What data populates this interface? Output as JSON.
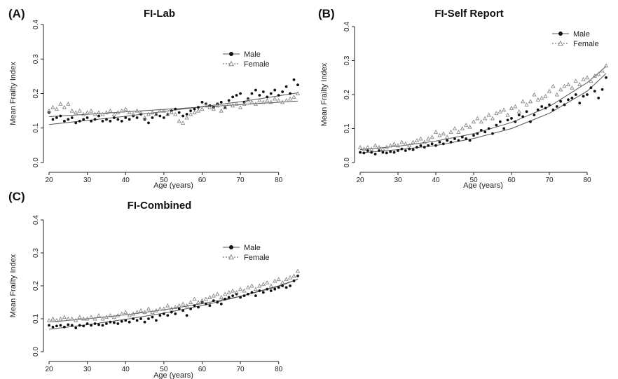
{
  "chart_data": [
    {
      "panel": "(A)",
      "type": "scatter",
      "title": "FI-Lab",
      "xlabel": "Age (years)",
      "ylabel": "Mean Frailty Index",
      "xlim": [
        20,
        85
      ],
      "ylim": [
        0,
        0.4
      ],
      "xticks": [
        "20",
        "30",
        "40",
        "50",
        "60",
        "70",
        "80"
      ],
      "yticks": [
        "0.0",
        "0.1",
        "0.2",
        "0.3",
        "0.4"
      ],
      "legend_position": "top-right",
      "series": [
        {
          "name": "Male",
          "marker": "filled-circle",
          "color": "#111111",
          "x": [
            20,
            21,
            22,
            23,
            24,
            25,
            26,
            27,
            28,
            29,
            30,
            31,
            32,
            33,
            34,
            35,
            36,
            37,
            38,
            39,
            40,
            41,
            42,
            43,
            44,
            45,
            46,
            47,
            48,
            49,
            50,
            51,
            52,
            53,
            54,
            55,
            56,
            57,
            58,
            59,
            60,
            61,
            62,
            63,
            64,
            65,
            66,
            67,
            68,
            69,
            70,
            71,
            72,
            73,
            74,
            75,
            76,
            77,
            78,
            79,
            80,
            81,
            82,
            83,
            84,
            85
          ],
          "y": [
            0.145,
            0.125,
            0.13,
            0.135,
            0.12,
            0.125,
            0.13,
            0.115,
            0.12,
            0.125,
            0.13,
            0.12,
            0.125,
            0.135,
            0.12,
            0.125,
            0.12,
            0.13,
            0.125,
            0.12,
            0.13,
            0.125,
            0.135,
            0.13,
            0.14,
            0.125,
            0.115,
            0.13,
            0.14,
            0.135,
            0.13,
            0.14,
            0.15,
            0.155,
            0.145,
            0.135,
            0.14,
            0.15,
            0.155,
            0.16,
            0.175,
            0.17,
            0.165,
            0.16,
            0.17,
            0.175,
            0.16,
            0.18,
            0.19,
            0.195,
            0.2,
            0.175,
            0.185,
            0.2,
            0.21,
            0.195,
            0.205,
            0.19,
            0.2,
            0.21,
            0.195,
            0.205,
            0.22,
            0.2,
            0.24,
            0.225
          ],
          "fit": {
            "x": [
              20,
              30,
              40,
              50,
              60,
              70,
              85
            ],
            "y": [
              0.11,
              0.122,
              0.134,
              0.148,
              0.162,
              0.176,
              0.202
            ]
          }
        },
        {
          "name": "Female",
          "marker": "open-triangle",
          "color": "#888888",
          "x": [
            20,
            21,
            22,
            23,
            24,
            25,
            26,
            27,
            28,
            29,
            30,
            31,
            32,
            33,
            34,
            35,
            36,
            37,
            38,
            39,
            40,
            41,
            42,
            43,
            44,
            45,
            46,
            47,
            48,
            49,
            50,
            51,
            52,
            53,
            54,
            55,
            56,
            57,
            58,
            59,
            60,
            61,
            62,
            63,
            64,
            65,
            66,
            67,
            68,
            69,
            70,
            71,
            72,
            73,
            74,
            75,
            76,
            77,
            78,
            79,
            80,
            81,
            82,
            83,
            84,
            85
          ],
          "y": [
            0.15,
            0.16,
            0.155,
            0.17,
            0.16,
            0.17,
            0.15,
            0.145,
            0.15,
            0.14,
            0.145,
            0.15,
            0.14,
            0.145,
            0.14,
            0.145,
            0.15,
            0.14,
            0.145,
            0.15,
            0.155,
            0.145,
            0.14,
            0.15,
            0.145,
            0.13,
            0.14,
            0.145,
            0.14,
            0.15,
            0.15,
            0.14,
            0.145,
            0.14,
            0.12,
            0.115,
            0.13,
            0.14,
            0.145,
            0.15,
            0.155,
            0.165,
            0.16,
            0.155,
            0.165,
            0.15,
            0.16,
            0.17,
            0.165,
            0.17,
            0.16,
            0.17,
            0.18,
            0.175,
            0.17,
            0.18,
            0.175,
            0.18,
            0.175,
            0.185,
            0.18,
            0.175,
            0.18,
            0.185,
            0.19,
            0.2
          ],
          "fit": {
            "x": [
              20,
              30,
              40,
              50,
              60,
              70,
              85
            ],
            "y": [
              0.133,
              0.14,
              0.147,
              0.154,
              0.161,
              0.168,
              0.178
            ]
          }
        }
      ]
    },
    {
      "panel": "(B)",
      "type": "scatter",
      "title": "FI-Self Report",
      "xlabel": "Age (years)",
      "ylabel": "Mean Frailty Index",
      "xlim": [
        20,
        85
      ],
      "ylim": [
        0,
        0.4
      ],
      "xticks": [
        "20",
        "30",
        "40",
        "50",
        "60",
        "70",
        "80"
      ],
      "yticks": [
        "0.0",
        "0.1",
        "0.2",
        "0.3",
        "0.4"
      ],
      "legend_position": "top-right",
      "series": [
        {
          "name": "Male",
          "marker": "filled-circle",
          "color": "#111111",
          "x": [
            20,
            21,
            22,
            23,
            24,
            25,
            26,
            27,
            28,
            29,
            30,
            31,
            32,
            33,
            34,
            35,
            36,
            37,
            38,
            39,
            40,
            41,
            42,
            43,
            44,
            45,
            46,
            47,
            48,
            49,
            50,
            51,
            52,
            53,
            54,
            55,
            56,
            57,
            58,
            59,
            60,
            61,
            62,
            63,
            64,
            65,
            66,
            67,
            68,
            69,
            70,
            71,
            72,
            73,
            74,
            75,
            76,
            77,
            78,
            79,
            80,
            81,
            82,
            83,
            84,
            85
          ],
          "y": [
            0.03,
            0.028,
            0.035,
            0.03,
            0.025,
            0.035,
            0.03,
            0.028,
            0.032,
            0.03,
            0.035,
            0.04,
            0.035,
            0.04,
            0.038,
            0.045,
            0.05,
            0.045,
            0.05,
            0.055,
            0.05,
            0.06,
            0.055,
            0.065,
            0.06,
            0.07,
            0.065,
            0.075,
            0.07,
            0.065,
            0.08,
            0.085,
            0.095,
            0.09,
            0.1,
            0.085,
            0.11,
            0.12,
            0.1,
            0.125,
            0.13,
            0.12,
            0.14,
            0.135,
            0.15,
            0.12,
            0.14,
            0.155,
            0.165,
            0.16,
            0.17,
            0.155,
            0.165,
            0.18,
            0.17,
            0.185,
            0.19,
            0.2,
            0.175,
            0.195,
            0.2,
            0.22,
            0.21,
            0.19,
            0.215,
            0.25
          ],
          "fit": {
            "x": [
              20,
              30,
              40,
              50,
              60,
              70,
              80,
              85
            ],
            "y": [
              0.028,
              0.038,
              0.05,
              0.071,
              0.1,
              0.145,
              0.21,
              0.262
            ]
          }
        },
        {
          "name": "Female",
          "marker": "open-triangle",
          "color": "#888888",
          "x": [
            20,
            21,
            22,
            23,
            24,
            25,
            26,
            27,
            28,
            29,
            30,
            31,
            32,
            33,
            34,
            35,
            36,
            37,
            38,
            39,
            40,
            41,
            42,
            43,
            44,
            45,
            46,
            47,
            48,
            49,
            50,
            51,
            52,
            53,
            54,
            55,
            56,
            57,
            58,
            59,
            60,
            61,
            62,
            63,
            64,
            65,
            66,
            67,
            68,
            69,
            70,
            71,
            72,
            73,
            74,
            75,
            76,
            77,
            78,
            79,
            80,
            81,
            82,
            83,
            84,
            85
          ],
          "y": [
            0.045,
            0.04,
            0.045,
            0.04,
            0.05,
            0.045,
            0.04,
            0.045,
            0.05,
            0.055,
            0.05,
            0.06,
            0.055,
            0.05,
            0.06,
            0.065,
            0.07,
            0.06,
            0.07,
            0.075,
            0.09,
            0.08,
            0.085,
            0.075,
            0.09,
            0.1,
            0.09,
            0.1,
            0.11,
            0.105,
            0.12,
            0.13,
            0.12,
            0.13,
            0.14,
            0.13,
            0.145,
            0.15,
            0.155,
            0.14,
            0.16,
            0.165,
            0.15,
            0.18,
            0.17,
            0.18,
            0.2,
            0.185,
            0.19,
            0.195,
            0.21,
            0.225,
            0.2,
            0.215,
            0.225,
            0.23,
            0.22,
            0.24,
            0.23,
            0.245,
            0.25,
            0.24,
            0.255,
            0.26,
            0.27,
            0.285
          ],
          "fit": {
            "x": [
              20,
              30,
              40,
              50,
              60,
              70,
              80,
              85
            ],
            "y": [
              0.038,
              0.048,
              0.063,
              0.085,
              0.118,
              0.165,
              0.235,
              0.283
            ]
          }
        }
      ]
    },
    {
      "panel": "(C)",
      "type": "scatter",
      "title": "FI-Combined",
      "xlabel": "Age (years)",
      "ylabel": "Mean Frailty Index",
      "xlim": [
        20,
        85
      ],
      "ylim": [
        0,
        0.4
      ],
      "xticks": [
        "20",
        "30",
        "40",
        "50",
        "60",
        "70",
        "80"
      ],
      "yticks": [
        "0.0",
        "0.1",
        "0.2",
        "0.3",
        "0.4"
      ],
      "legend_position": "top-right",
      "series": [
        {
          "name": "Male",
          "marker": "filled-circle",
          "color": "#111111",
          "x": [
            20,
            21,
            22,
            23,
            24,
            25,
            26,
            27,
            28,
            29,
            30,
            31,
            32,
            33,
            34,
            35,
            36,
            37,
            38,
            39,
            40,
            41,
            42,
            43,
            44,
            45,
            46,
            47,
            48,
            49,
            50,
            51,
            52,
            53,
            54,
            55,
            56,
            57,
            58,
            59,
            60,
            61,
            62,
            63,
            64,
            65,
            66,
            67,
            68,
            69,
            70,
            71,
            72,
            73,
            74,
            75,
            76,
            77,
            78,
            79,
            80,
            81,
            82,
            83,
            84,
            85
          ],
          "y": [
            0.08,
            0.075,
            0.078,
            0.08,
            0.075,
            0.082,
            0.08,
            0.072,
            0.08,
            0.078,
            0.085,
            0.08,
            0.085,
            0.082,
            0.08,
            0.085,
            0.09,
            0.088,
            0.085,
            0.092,
            0.095,
            0.09,
            0.1,
            0.095,
            0.1,
            0.09,
            0.1,
            0.105,
            0.095,
            0.11,
            0.115,
            0.11,
            0.12,
            0.115,
            0.13,
            0.125,
            0.11,
            0.13,
            0.14,
            0.135,
            0.15,
            0.145,
            0.14,
            0.155,
            0.15,
            0.145,
            0.16,
            0.165,
            0.17,
            0.175,
            0.165,
            0.17,
            0.175,
            0.18,
            0.17,
            0.185,
            0.18,
            0.19,
            0.185,
            0.19,
            0.195,
            0.2,
            0.195,
            0.2,
            0.215,
            0.23
          ],
          "fit": {
            "x": [
              20,
              30,
              40,
              50,
              60,
              70,
              80,
              85
            ],
            "y": [
              0.068,
              0.082,
              0.098,
              0.117,
              0.14,
              0.168,
              0.2,
              0.22
            ]
          }
        },
        {
          "name": "Female",
          "marker": "open-triangle",
          "color": "#888888",
          "x": [
            20,
            21,
            22,
            23,
            24,
            25,
            26,
            27,
            28,
            29,
            30,
            31,
            32,
            33,
            34,
            35,
            36,
            37,
            38,
            39,
            40,
            41,
            42,
            43,
            44,
            45,
            46,
            47,
            48,
            49,
            50,
            51,
            52,
            53,
            54,
            55,
            56,
            57,
            58,
            59,
            60,
            61,
            62,
            63,
            64,
            65,
            66,
            67,
            68,
            69,
            70,
            71,
            72,
            73,
            74,
            75,
            76,
            77,
            78,
            79,
            80,
            81,
            82,
            83,
            84,
            85
          ],
          "y": [
            0.095,
            0.1,
            0.095,
            0.1,
            0.105,
            0.1,
            0.1,
            0.095,
            0.105,
            0.1,
            0.1,
            0.105,
            0.1,
            0.11,
            0.1,
            0.105,
            0.11,
            0.105,
            0.11,
            0.115,
            0.12,
            0.11,
            0.115,
            0.12,
            0.125,
            0.12,
            0.13,
            0.12,
            0.125,
            0.13,
            0.13,
            0.14,
            0.13,
            0.135,
            0.14,
            0.145,
            0.14,
            0.15,
            0.16,
            0.15,
            0.155,
            0.16,
            0.165,
            0.17,
            0.175,
            0.165,
            0.175,
            0.18,
            0.185,
            0.18,
            0.19,
            0.185,
            0.195,
            0.2,
            0.19,
            0.2,
            0.205,
            0.21,
            0.2,
            0.215,
            0.22,
            0.21,
            0.22,
            0.225,
            0.23,
            0.245
          ],
          "fit": {
            "x": [
              20,
              30,
              40,
              50,
              60,
              70,
              80,
              85
            ],
            "y": [
              0.09,
              0.1,
              0.112,
              0.127,
              0.146,
              0.168,
              0.198,
              0.22
            ]
          }
        }
      ]
    }
  ]
}
